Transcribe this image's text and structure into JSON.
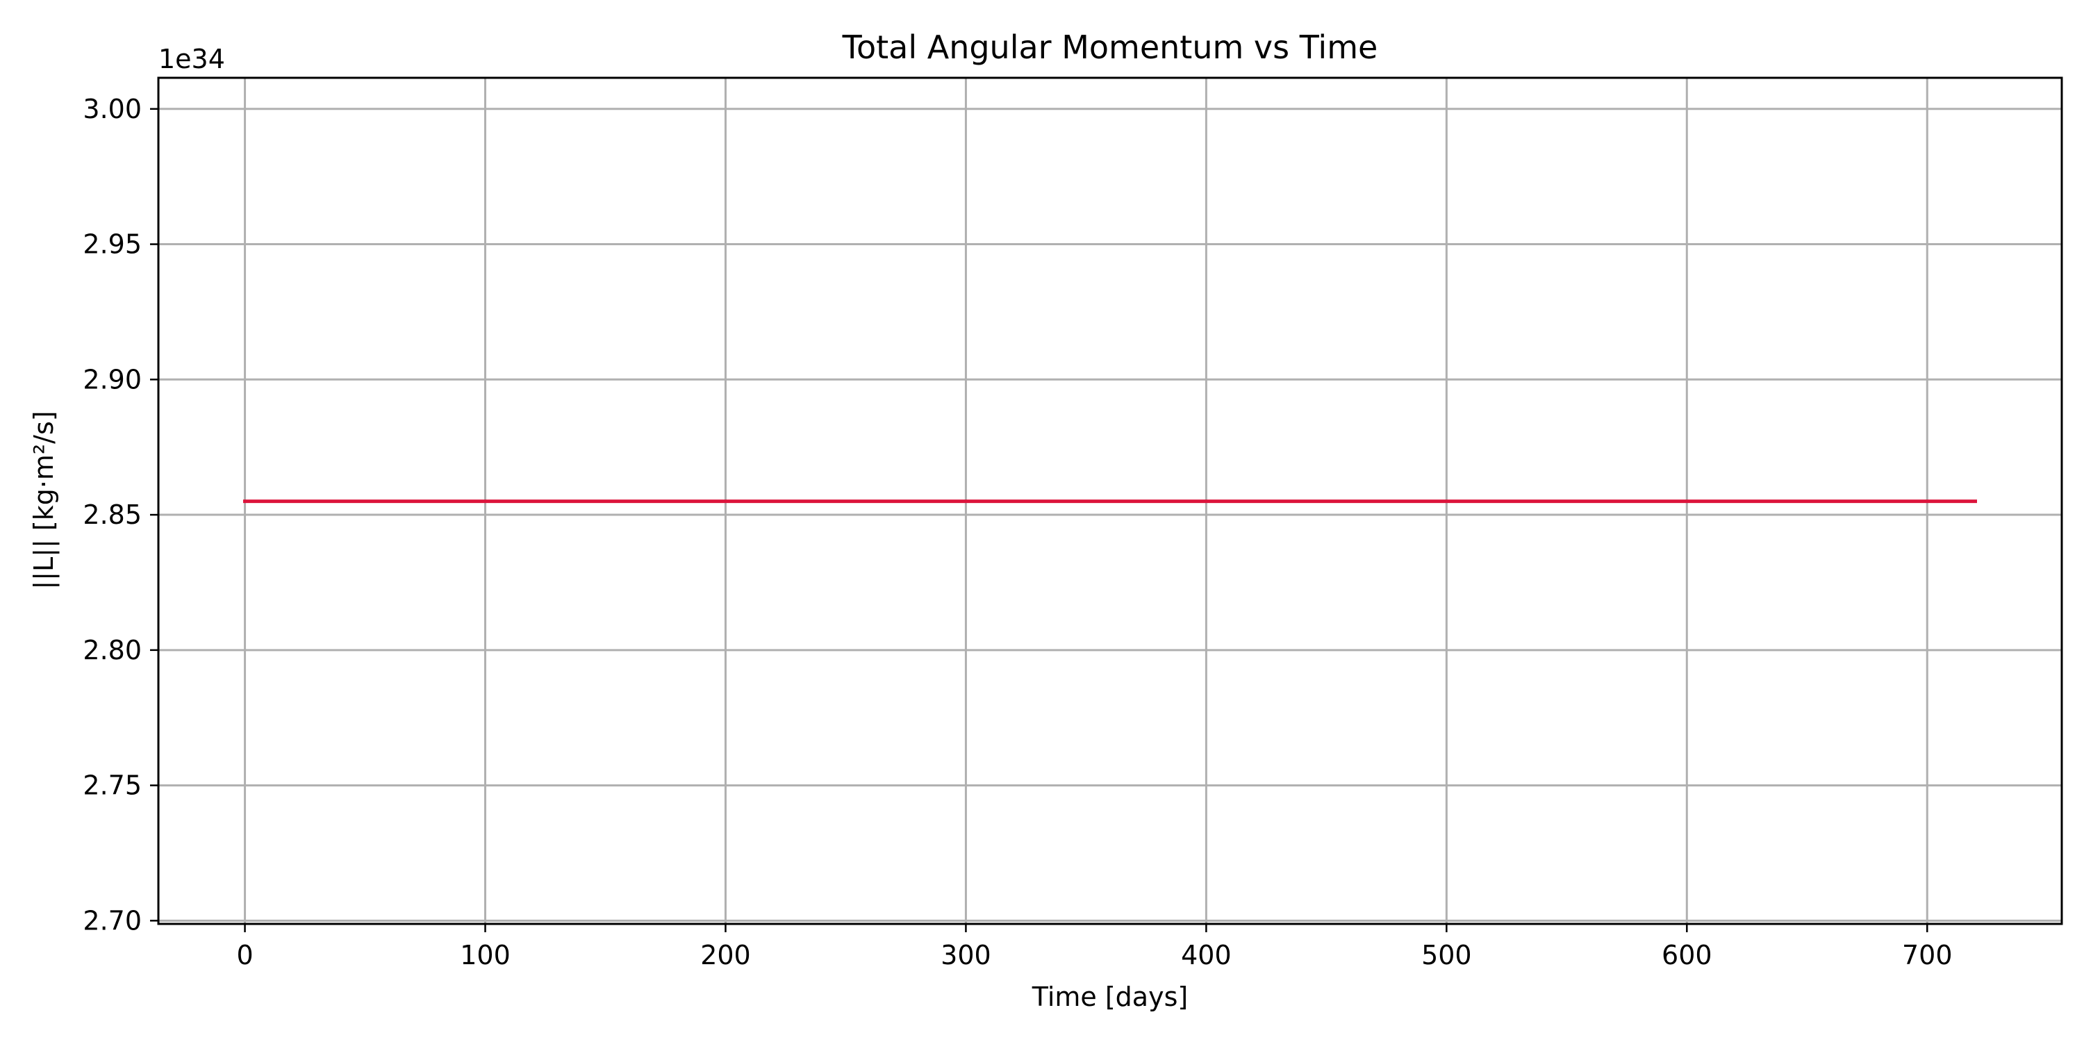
{
  "chart_data": {
    "type": "line",
    "title": "Total Angular Momentum vs Time",
    "xlabel": "Time [days]",
    "ylabel": "||L|| [kg·m²/s]",
    "y_offset_label": "1e34",
    "xlim": [
      -36,
      756
    ],
    "ylim": [
      2.6988,
      3.0115
    ],
    "x_ticks": [
      0,
      100,
      200,
      300,
      400,
      500,
      600,
      700
    ],
    "x_tick_labels": [
      "0",
      "100",
      "200",
      "300",
      "400",
      "500",
      "600",
      "700"
    ],
    "y_ticks": [
      2.7,
      2.75,
      2.8,
      2.85,
      2.9,
      2.95,
      3.0
    ],
    "y_tick_labels": [
      "2.70",
      "2.75",
      "2.80",
      "2.85",
      "2.90",
      "2.95",
      "3.00"
    ],
    "grid": true,
    "series": [
      {
        "color": "#dc143c",
        "x": [
          0,
          720
        ],
        "y": [
          2.855,
          2.855
        ]
      }
    ]
  }
}
